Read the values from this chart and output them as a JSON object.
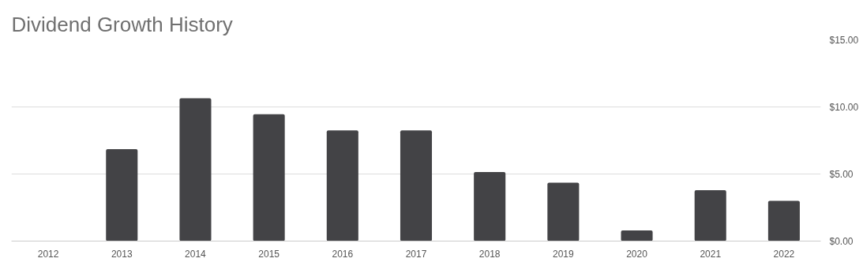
{
  "chart_data": {
    "type": "bar",
    "title": "Dividend Growth History",
    "categories": [
      "2012",
      "2013",
      "2014",
      "2015",
      "2016",
      "2017",
      "2018",
      "2019",
      "2020",
      "2021",
      "2022"
    ],
    "values": [
      null,
      6.85,
      10.65,
      9.45,
      8.25,
      8.25,
      5.15,
      4.35,
      0.8,
      3.8,
      3.0
    ],
    "color": "#434346",
    "ylim": [
      0,
      15
    ],
    "yticks": [
      {
        "value": 0,
        "label": "$0.00"
      },
      {
        "value": 5,
        "label": "$5.00"
      },
      {
        "value": 10,
        "label": "$10.00"
      },
      {
        "value": 15,
        "label": "$15.00"
      }
    ],
    "grid": "y"
  }
}
